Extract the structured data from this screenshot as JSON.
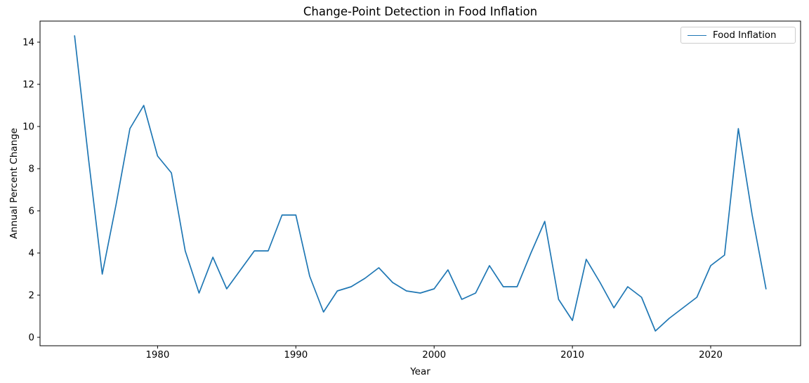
{
  "chart_data": {
    "type": "line",
    "title": "Change-Point Detection in Food Inflation",
    "xlabel": "Year",
    "ylabel": "Annual Percent Change",
    "grid": false,
    "legend": {
      "position": "upper right",
      "entries": [
        "Food Inflation"
      ]
    },
    "xlim": [
      1971.5,
      2026.5
    ],
    "ylim": [
      -0.4,
      15.0
    ],
    "xticks": [
      1980,
      1990,
      2000,
      2010,
      2020
    ],
    "yticks": [
      0,
      2,
      4,
      6,
      8,
      10,
      12,
      14
    ],
    "x": [
      1974,
      1975,
      1976,
      1977,
      1978,
      1979,
      1980,
      1981,
      1982,
      1983,
      1984,
      1985,
      1986,
      1987,
      1988,
      1989,
      1990,
      1991,
      1992,
      1993,
      1994,
      1995,
      1996,
      1997,
      1998,
      1999,
      2000,
      2001,
      2002,
      2003,
      2004,
      2005,
      2006,
      2007,
      2008,
      2009,
      2010,
      2011,
      2012,
      2013,
      2014,
      2015,
      2016,
      2017,
      2018,
      2019,
      2020,
      2021,
      2022,
      2023,
      2024
    ],
    "series": [
      {
        "name": "Food Inflation",
        "color": "#1f77b4",
        "values": [
          14.3,
          8.5,
          3.0,
          6.3,
          9.9,
          11.0,
          8.6,
          7.8,
          4.1,
          2.1,
          3.8,
          2.3,
          3.2,
          4.1,
          4.1,
          5.8,
          5.8,
          2.9,
          1.2,
          2.2,
          2.4,
          2.8,
          3.3,
          2.6,
          2.2,
          2.1,
          2.3,
          3.2,
          1.8,
          2.1,
          3.4,
          2.4,
          2.4,
          4.0,
          5.5,
          1.8,
          0.8,
          3.7,
          2.6,
          1.4,
          2.4,
          1.9,
          0.3,
          0.9,
          1.4,
          1.9,
          3.4,
          3.9,
          9.9,
          5.8,
          2.3
        ]
      }
    ]
  }
}
